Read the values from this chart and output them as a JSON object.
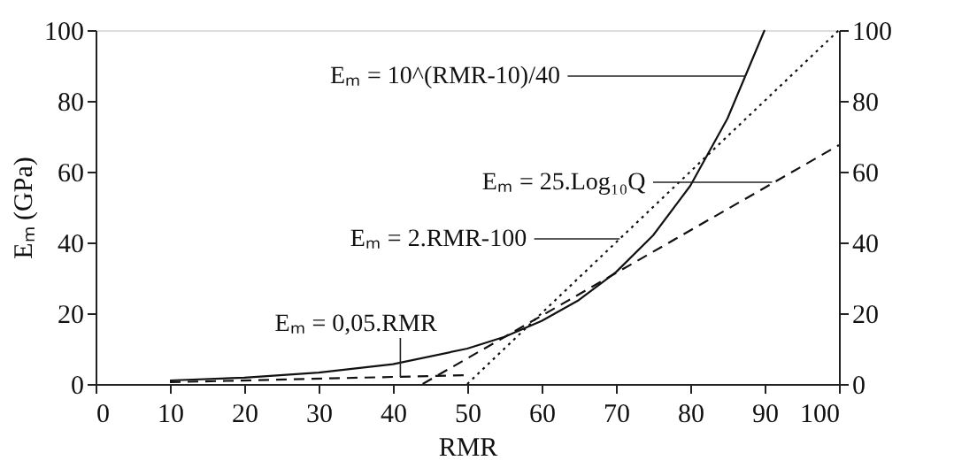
{
  "chart_data": {
    "type": "line",
    "xlabel": "RMR",
    "ylabel": "Eₘ (GPa)",
    "xlim": [
      0,
      100
    ],
    "xticks": [
      0,
      10,
      20,
      30,
      40,
      50,
      60,
      70,
      80,
      90,
      100
    ],
    "ylim": [
      0,
      100
    ],
    "yticks": [
      0,
      20,
      40,
      60,
      80,
      100
    ],
    "y2lim": [
      0,
      100
    ],
    "y2ticks": [
      0,
      20,
      40,
      60,
      80,
      100
    ],
    "grid": false,
    "marker": "none",
    "series": [
      {
        "color": "#111111",
        "line_style": "solid",
        "x": [
          10,
          20,
          30,
          40,
          50,
          55,
          60,
          65,
          70,
          75,
          80,
          85,
          90
        ],
        "values": [
          1,
          1.8,
          3.2,
          5.6,
          10,
          13.3,
          17.8,
          23.7,
          31.6,
          42,
          56,
          75,
          100
        ]
      },
      {
        "color": "#111111",
        "line_style": "dotted",
        "x": [
          50,
          100
        ],
        "values": [
          0,
          100
        ]
      },
      {
        "color": "#111111",
        "line_style": "dashed",
        "x": [
          44,
          100
        ],
        "values": [
          0,
          67.5
        ]
      },
      {
        "color": "#111111",
        "line_style": "dashed",
        "x": [
          10,
          50
        ],
        "values": [
          0.5,
          2.5
        ]
      }
    ],
    "annotations": [
      {
        "text": "Eₘ = 10^(RMR-10)/40",
        "x": 87.5,
        "y": 87
      },
      {
        "text": "Eₘ = 25.Log₁₀Q",
        "x": 91,
        "y": 57
      },
      {
        "text": "Eₘ = 2.RMR-100",
        "x": 70.5,
        "y": 41
      },
      {
        "text": "Eₘ = 0,05.RMR",
        "x": 41,
        "y": 2
      }
    ]
  }
}
